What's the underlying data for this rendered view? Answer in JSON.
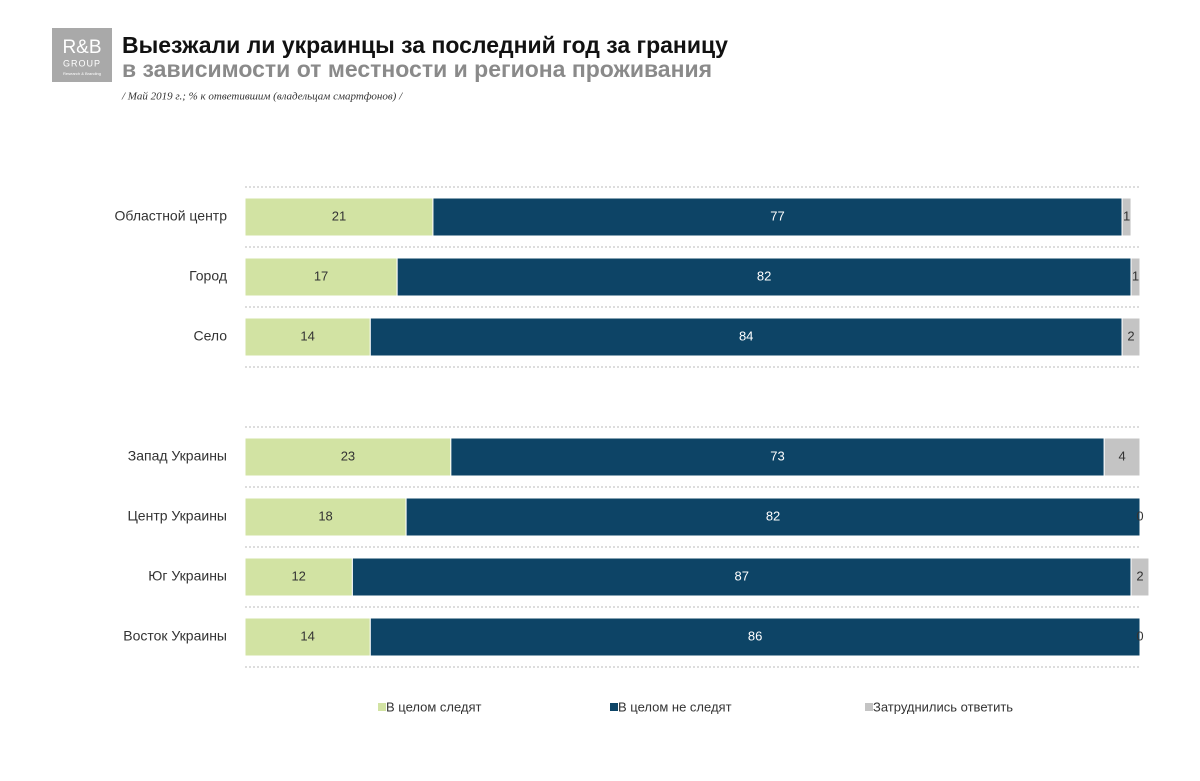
{
  "logo": {
    "name": "R&B",
    "group": "GROUP",
    "tagline": "Research & Branding"
  },
  "chart_data": {
    "type": "stacked-bar-horizontal",
    "title": "Выезжали ли украинцы за последний год за границу",
    "subtitle": "в зависимости от местности и региона проживания",
    "note": "/ Май 2019 г.; % к ответившим (владельцам смартфонов) /",
    "categories": [
      "Областной центр",
      "Город",
      "Село",
      "Запад Украины",
      "Центр Украины",
      "Юг Украины",
      "Восток Украины"
    ],
    "series": [
      {
        "name": "В целом следят",
        "color": "#d2e3a3",
        "values": [
          21,
          17,
          14,
          23,
          18,
          12,
          14
        ]
      },
      {
        "name": "В целом не следят",
        "color": "#0d4466",
        "values": [
          77,
          82,
          84,
          73,
          82,
          87,
          86
        ]
      },
      {
        "name": "Затруднились ответить",
        "color": "#c4c4c4",
        "values": [
          1,
          1,
          2,
          4,
          0,
          2,
          0
        ]
      }
    ],
    "xlim": [
      0,
      100
    ],
    "legend": "bottom"
  }
}
